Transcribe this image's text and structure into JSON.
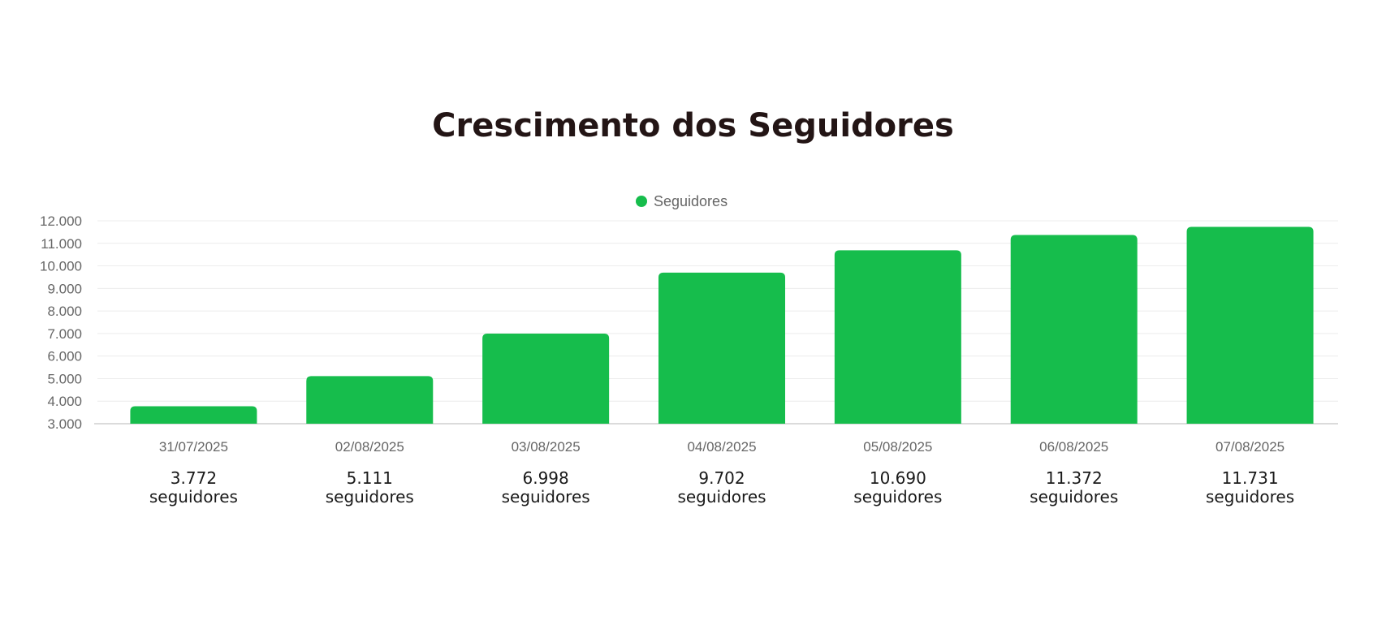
{
  "page": {
    "title": "Crescimento dos Seguidores"
  },
  "chart_data": {
    "type": "bar",
    "categories": [
      "31/07/2025",
      "02/08/2025",
      "03/08/2025",
      "04/08/2025",
      "05/08/2025",
      "06/08/2025",
      "07/08/2025"
    ],
    "series": [
      {
        "name": "Seguidores",
        "values": [
          3772,
          5111,
          6998,
          9702,
          10690,
          11372,
          11731
        ],
        "color": "#16bd4c"
      }
    ],
    "ylim": [
      3000,
      12000
    ],
    "y_ticks": [
      3000,
      4000,
      5000,
      6000,
      7000,
      8000,
      9000,
      10000,
      11000,
      12000
    ],
    "y_tick_labels": [
      "3.000",
      "4.000",
      "5.000",
      "6.000",
      "7.000",
      "8.000",
      "9.000",
      "10.000",
      "11.000",
      "12.000"
    ],
    "value_labels": [
      "3.772",
      "5.111",
      "6.998",
      "9.702",
      "10.690",
      "11.372",
      "11.731"
    ],
    "value_unit_label": "seguidores",
    "legend_position": "top-center",
    "grid": true
  }
}
